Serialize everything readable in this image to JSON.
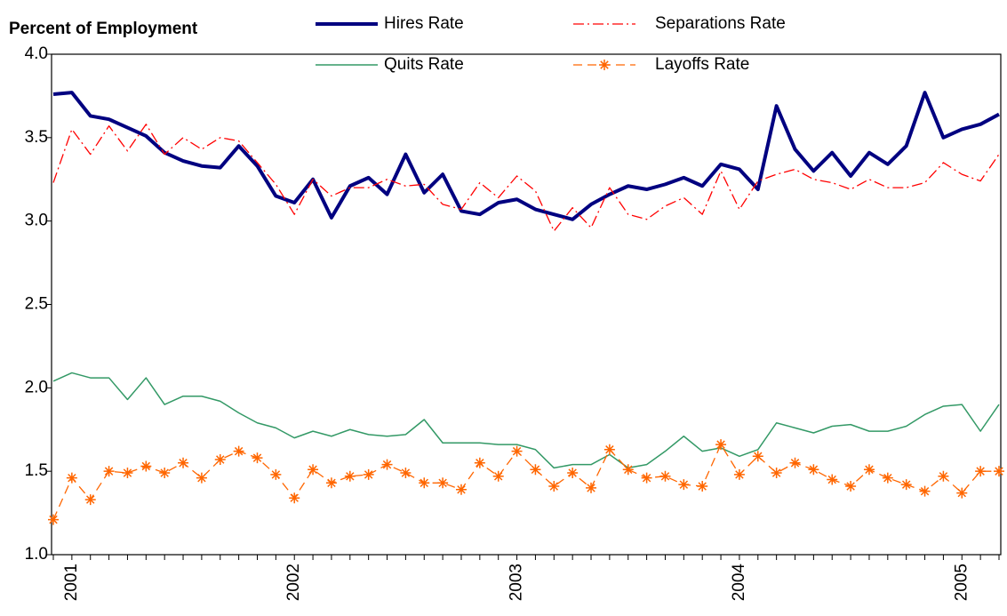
{
  "chart_data": {
    "type": "line",
    "y_axis_title": "Percent of Employment",
    "categories": [
      null,
      "2001",
      null,
      null,
      null,
      null,
      null,
      null,
      null,
      null,
      null,
      null,
      null,
      "2002",
      null,
      null,
      null,
      null,
      null,
      null,
      null,
      null,
      null,
      null,
      null,
      "2003",
      null,
      null,
      null,
      null,
      null,
      null,
      null,
      null,
      null,
      null,
      null,
      "2004",
      null,
      null,
      null,
      null,
      null,
      null,
      null,
      null,
      null,
      null,
      null,
      "2005",
      null,
      null
    ],
    "ylim": [
      1,
      4
    ],
    "yticks": [
      {
        "value": 1,
        "label": "1.0"
      },
      {
        "value": 1.5,
        "label": "1.5"
      },
      {
        "value": 2,
        "label": "2.0"
      },
      {
        "value": 2.5,
        "label": "2.5"
      },
      {
        "value": 3,
        "label": "3.0"
      },
      {
        "value": 3.5,
        "label": "3.5"
      },
      {
        "value": 4,
        "label": "4.0"
      }
    ],
    "grid": false,
    "series": [
      {
        "name": "Hires Rate",
        "color": "#000080",
        "width": 4,
        "dash": "solid",
        "marker": "none",
        "values": [
          3.76,
          3.77,
          3.63,
          3.61,
          3.56,
          3.51,
          3.41,
          3.36,
          3.33,
          3.32,
          3.45,
          3.33,
          3.15,
          3.11,
          3.25,
          3.02,
          3.21,
          3.26,
          3.16,
          3.4,
          3.17,
          3.28,
          3.06,
          3.04,
          3.11,
          3.13,
          3.07,
          3.04,
          3.01,
          3.1,
          3.16,
          3.21,
          3.19,
          3.22,
          3.26,
          3.21,
          3.34,
          3.31,
          3.19,
          3.69,
          3.43,
          3.3,
          3.41,
          3.27,
          3.41,
          3.34,
          3.45,
          3.77,
          3.5,
          3.55,
          3.58,
          3.64
        ]
      },
      {
        "name": "Separations Rate",
        "color": "#ff0000",
        "width": 1.3,
        "dash": "dash-dot",
        "marker": "none",
        "values": [
          3.23,
          3.55,
          3.4,
          3.57,
          3.42,
          3.58,
          3.4,
          3.5,
          3.43,
          3.5,
          3.48,
          3.35,
          3.22,
          3.04,
          3.25,
          3.15,
          3.2,
          3.2,
          3.25,
          3.21,
          3.22,
          3.1,
          3.07,
          3.23,
          3.14,
          3.27,
          3.18,
          2.94,
          3.08,
          2.96,
          3.2,
          3.04,
          3.01,
          3.09,
          3.14,
          3.04,
          3.3,
          3.07,
          3.24,
          3.28,
          3.31,
          3.25,
          3.23,
          3.19,
          3.25,
          3.2,
          3.2,
          3.23,
          3.35,
          3.28,
          3.24,
          3.4
        ]
      },
      {
        "name": "Quits Rate",
        "color": "#339966",
        "width": 1.5,
        "dash": "solid",
        "marker": "none",
        "values": [
          2.04,
          2.09,
          2.06,
          2.06,
          1.93,
          2.06,
          1.9,
          1.95,
          1.95,
          1.92,
          1.85,
          1.79,
          1.76,
          1.7,
          1.74,
          1.71,
          1.75,
          1.72,
          1.71,
          1.72,
          1.81,
          1.67,
          1.67,
          1.67,
          1.66,
          1.66,
          1.63,
          1.52,
          1.54,
          1.54,
          1.6,
          1.52,
          1.54,
          1.62,
          1.71,
          1.62,
          1.64,
          1.59,
          1.63,
          1.79,
          1.76,
          1.73,
          1.77,
          1.78,
          1.74,
          1.74,
          1.77,
          1.84,
          1.89,
          1.9,
          1.74,
          1.9
        ]
      },
      {
        "name": "Layoffs Rate",
        "color": "#ff6600",
        "width": 1.3,
        "dash": "dash",
        "marker": "asterisk",
        "values": [
          1.21,
          1.46,
          1.33,
          1.5,
          1.49,
          1.53,
          1.49,
          1.55,
          1.46,
          1.57,
          1.62,
          1.58,
          1.48,
          1.34,
          1.51,
          1.43,
          1.47,
          1.48,
          1.54,
          1.49,
          1.43,
          1.43,
          1.39,
          1.55,
          1.47,
          1.62,
          1.51,
          1.41,
          1.49,
          1.4,
          1.63,
          1.51,
          1.46,
          1.47,
          1.42,
          1.41,
          1.66,
          1.48,
          1.59,
          1.49,
          1.55,
          1.51,
          1.45,
          1.41,
          1.51,
          1.46,
          1.42,
          1.38,
          1.47,
          1.37,
          1.5,
          1.5
        ]
      }
    ]
  }
}
